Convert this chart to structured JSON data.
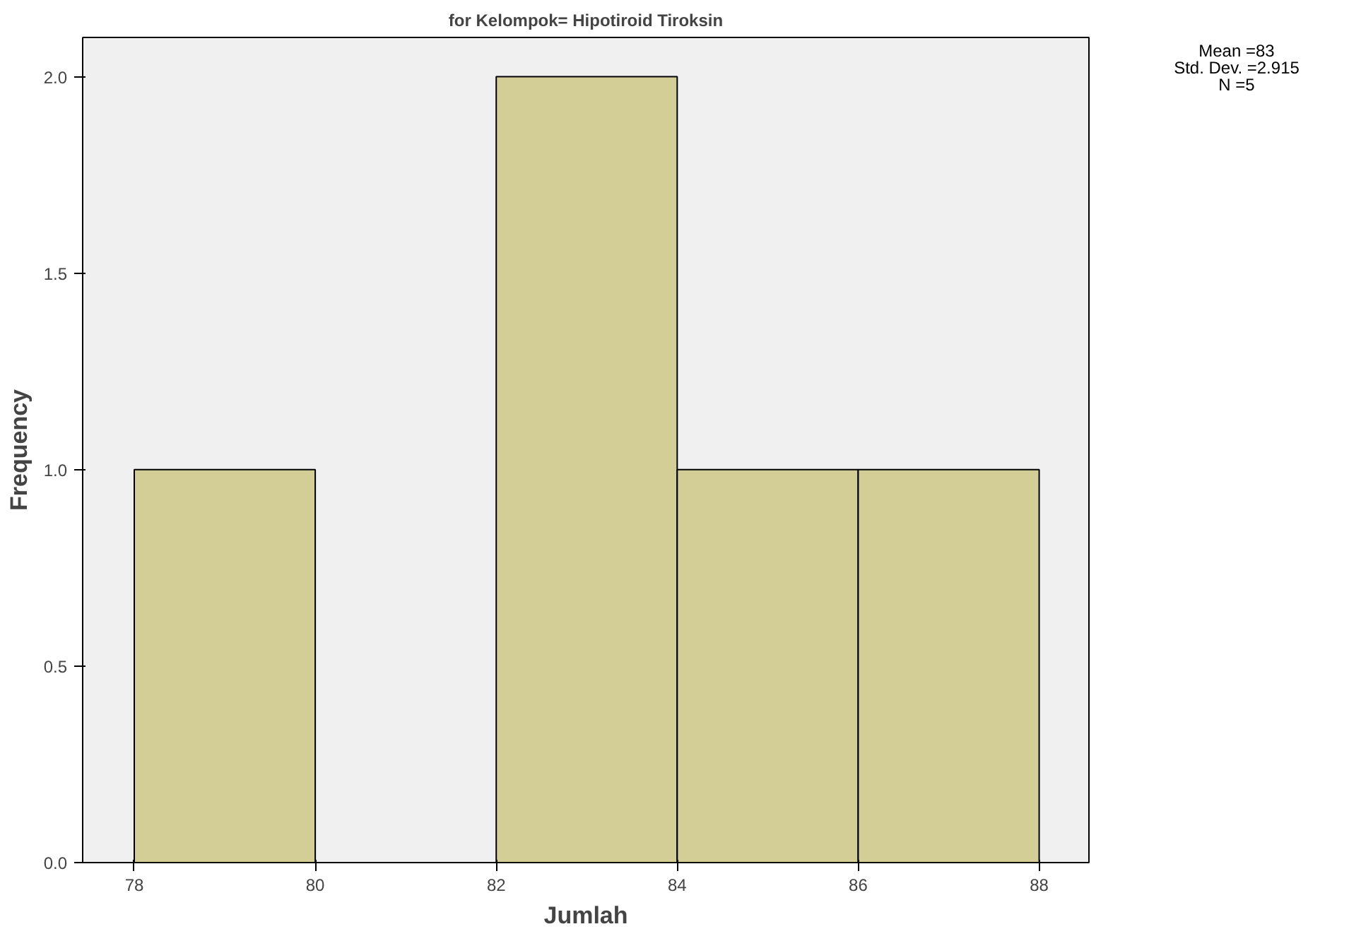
{
  "chart_data": {
    "type": "histogram",
    "title": "for Kelompok= Hipotiroid Tiroksin",
    "xlabel": "Jumlah",
    "ylabel": "Frequency",
    "bins": [
      78,
      80,
      82,
      84,
      86,
      88
    ],
    "values": [
      1,
      0,
      2,
      1,
      1
    ],
    "color": "#d3cd96",
    "xlim": [
      77.43,
      88.55
    ],
    "xticks": [
      78,
      80,
      82,
      84,
      86,
      88
    ],
    "ylim": [
      0,
      2.1
    ],
    "yticks": [
      {
        "value": 0,
        "label": "0.0"
      },
      0.5,
      {
        "value": 1,
        "label": "1.0"
      },
      1.5,
      {
        "value": 2,
        "label": "2.0"
      }
    ],
    "grid": false,
    "annotations": [
      "Mean =83",
      "Std. Dev. =2.915",
      "N =5"
    ]
  }
}
